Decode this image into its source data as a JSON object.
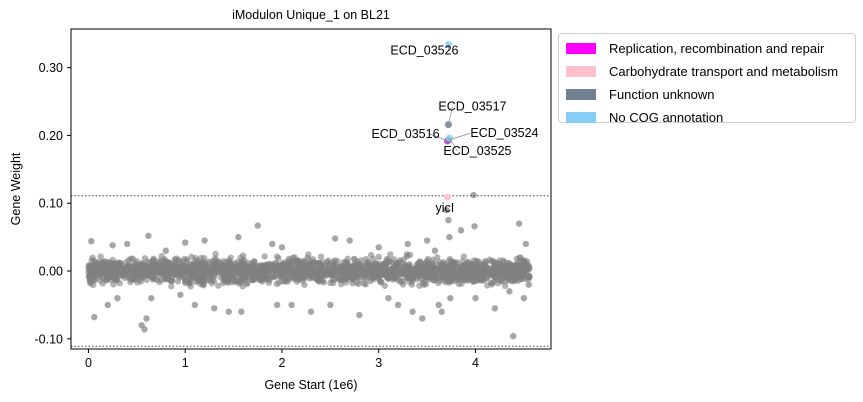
{
  "chart_data": {
    "type": "scatter",
    "title": "iModulon Unique_1 on BL21",
    "xlabel": "Gene Start (1e6)",
    "ylabel": "Gene Weight",
    "xlim": [
      -0.18,
      4.78
    ],
    "ylim": [
      -0.115,
      0.357
    ],
    "xticks": [
      0,
      1,
      2,
      3,
      4
    ],
    "yticks": [
      -0.1,
      0.0,
      0.1,
      0.2,
      0.3
    ],
    "ytick_labels": [
      "-0.10",
      "0.00",
      "0.10",
      "0.20",
      "0.30"
    ],
    "xtick_labels": [
      "0",
      "1",
      "2",
      "3",
      "4"
    ],
    "thresholds": [
      0.111,
      -0.111
    ],
    "grid": false,
    "legend_placement": "outside-right",
    "background_points": {
      "color": "#808080",
      "x_range": [
        0.0,
        4.56
      ],
      "y_range_dense": [
        -0.022,
        0.022
      ],
      "note_points": [
        [
          0.03,
          0.044
        ],
        [
          0.06,
          -0.068
        ],
        [
          0.25,
          0.038
        ],
        [
          0.3,
          -0.04
        ],
        [
          0.55,
          -0.08
        ],
        [
          0.58,
          -0.086
        ],
        [
          0.6,
          -0.07
        ],
        [
          0.62,
          0.052
        ],
        [
          0.65,
          -0.04
        ],
        [
          0.8,
          0.03
        ],
        [
          0.95,
          -0.035
        ],
        [
          1.1,
          -0.05
        ],
        [
          1.2,
          0.045
        ],
        [
          1.3,
          -0.055
        ],
        [
          1.45,
          -0.06
        ],
        [
          1.55,
          0.05
        ],
        [
          1.58,
          -0.06
        ],
        [
          1.75,
          0.067
        ],
        [
          1.9,
          0.04
        ],
        [
          1.95,
          -0.05
        ],
        [
          2.1,
          -0.05
        ],
        [
          2.3,
          -0.06
        ],
        [
          2.5,
          -0.05
        ],
        [
          2.7,
          0.045
        ],
        [
          2.8,
          -0.065
        ],
        [
          3.0,
          0.035
        ],
        [
          3.1,
          -0.04
        ],
        [
          3.2,
          -0.05
        ],
        [
          3.3,
          0.04
        ],
        [
          3.45,
          -0.07
        ],
        [
          3.5,
          0.045
        ],
        [
          3.58,
          0.03
        ],
        [
          3.62,
          -0.05
        ],
        [
          3.7,
          0.09
        ],
        [
          3.72,
          0.075
        ],
        [
          3.73,
          0.05
        ],
        [
          3.74,
          -0.04
        ],
        [
          3.85,
          0.06
        ],
        [
          3.98,
          0.112
        ],
        [
          3.99,
          0.066
        ],
        [
          4.0,
          -0.04
        ],
        [
          4.2,
          -0.055
        ],
        [
          4.35,
          -0.03
        ],
        [
          4.39,
          -0.096
        ],
        [
          4.45,
          0.07
        ],
        [
          4.5,
          -0.04
        ],
        [
          4.52,
          0.04
        ],
        [
          4.55,
          -0.02
        ],
        [
          3.65,
          -0.06
        ],
        [
          2.55,
          0.048
        ],
        [
          1.0,
          0.042
        ],
        [
          0.4,
          0.04
        ],
        [
          0.2,
          -0.05
        ],
        [
          2.0,
          0.035
        ],
        [
          3.35,
          -0.06
        ]
      ]
    },
    "series": [
      {
        "name": "Replication, recombination and repair",
        "color": "#ff00ff",
        "points": [
          {
            "x": 3.71,
            "y": 0.192,
            "label": "ECD_03516"
          }
        ]
      },
      {
        "name": "Carbohydrate transport and metabolism",
        "color": "#ffc0cb",
        "points": [
          {
            "x": 3.71,
            "y": 0.109,
            "label": "yicI"
          }
        ]
      },
      {
        "name": "Function unknown",
        "color": "#708090",
        "points": [
          {
            "x": 3.72,
            "y": 0.216,
            "label": "ECD_03517"
          },
          {
            "x": 3.72,
            "y": 0.193,
            "label": "ECD_03524"
          }
        ]
      },
      {
        "name": "No COG annotation",
        "color": "#87cefa",
        "points": [
          {
            "x": 3.72,
            "y": 0.334,
            "label": "ECD_03526"
          },
          {
            "x": 3.73,
            "y": 0.196,
            "label": "ECD_03525"
          }
        ]
      }
    ]
  },
  "legend": {
    "items": [
      {
        "label": "Replication, recombination and repair",
        "color": "#ff00ff"
      },
      {
        "label": "Carbohydrate transport and metabolism",
        "color": "#ffc0cb"
      },
      {
        "label": "Function unknown",
        "color": "#708090"
      },
      {
        "label": "No COG annotation",
        "color": "#87cefa"
      }
    ]
  }
}
